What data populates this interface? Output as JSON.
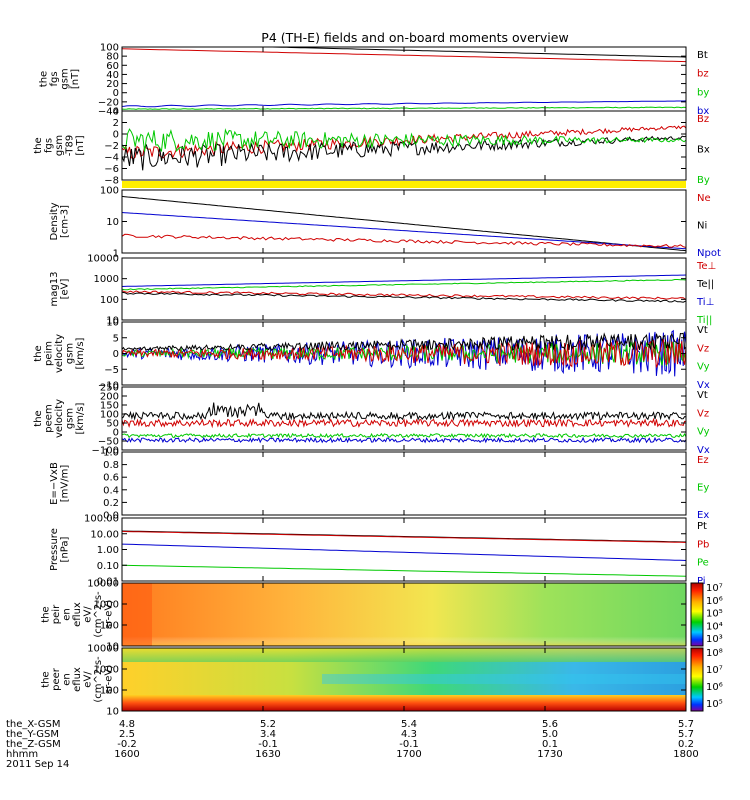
{
  "title": "P4 (TH-E) fields and on-board moments overview",
  "colors": {
    "black": "#000000",
    "red": "#d00000",
    "green": "#00c800",
    "blue": "#0000d0",
    "yellow": "#ffee00"
  },
  "x_ticks": [
    "1600",
    "1630",
    "1700",
    "1730",
    "1800"
  ],
  "footer": {
    "rows": [
      {
        "label": "the_X-GSM",
        "values": [
          "4.8",
          "5.2",
          "5.4",
          "5.6",
          "5.7"
        ]
      },
      {
        "label": "the_Y-GSM",
        "values": [
          "2.5",
          "3.4",
          "4.3",
          "5.0",
          "5.7"
        ]
      },
      {
        "label": "the_Z-GSM",
        "values": [
          "-0.2",
          "-0.1",
          "-0.1",
          "0.1",
          "0.2"
        ]
      },
      {
        "label": "hhmm",
        "values": [
          "1600",
          "1630",
          "1700",
          "1730",
          "1800"
        ]
      }
    ],
    "date": "2011 Sep 14"
  },
  "panels": [
    {
      "ylabel": [
        "the",
        "fgs",
        "gsm",
        "[nT]"
      ],
      "ylim": [
        -40,
        100
      ],
      "ticks": [
        "100",
        "80",
        "60",
        "40",
        "20",
        "0",
        "−20",
        "−40"
      ],
      "legend": [
        {
          "text": "Bt",
          "color": "black"
        },
        {
          "text": "bz",
          "color": "red"
        },
        {
          "text": "by",
          "color": "green"
        },
        {
          "text": "bx",
          "color": "blue"
        }
      ]
    },
    {
      "ylabel": [
        "the",
        "fgs",
        "gsm",
        "-T89",
        "[nT]"
      ],
      "ylim": [
        -9,
        4
      ],
      "ticks": [
        "4",
        "2",
        "0",
        "−2",
        "−4",
        "−6",
        "−8"
      ],
      "legend": [
        {
          "text": "Bz",
          "color": "red"
        },
        {
          "text": "Bx",
          "color": "black"
        },
        {
          "text": "By",
          "color": "green"
        }
      ]
    },
    {
      "ylabel": [
        "Density",
        "[cm-3]"
      ],
      "ylim": [
        1,
        150
      ],
      "log": true,
      "ticks": [
        "100",
        "10",
        "1"
      ],
      "legend": [
        {
          "text": "Ne",
          "color": "red"
        },
        {
          "text": "Ni",
          "color": "black"
        },
        {
          "text": "Npot",
          "color": "blue"
        }
      ]
    },
    {
      "ylabel": [
        "mag13",
        "[eV]"
      ],
      "ylim": [
        10,
        10000
      ],
      "log": true,
      "ticks": [
        "10000",
        "1000",
        "100",
        "10"
      ],
      "legend": [
        {
          "text": "Te⊥",
          "color": "red"
        },
        {
          "text": "Te||",
          "color": "black"
        },
        {
          "text": "Ti⊥",
          "color": "blue"
        },
        {
          "text": "Ti||",
          "color": "green"
        }
      ]
    },
    {
      "ylabel": [
        "the",
        "peim",
        "velocity",
        "gsm",
        "[km/s]"
      ],
      "ylim": [
        -10,
        10
      ],
      "ticks": [
        "10",
        "5",
        "0",
        "−5",
        "−10"
      ],
      "legend": [
        {
          "text": "Vt",
          "color": "black"
        },
        {
          "text": "Vz",
          "color": "red"
        },
        {
          "text": "Vy",
          "color": "green"
        },
        {
          "text": "Vx",
          "color": "blue"
        }
      ]
    },
    {
      "ylabel": [
        "the",
        "peem",
        "velocity",
        "gsm",
        "[km/s]"
      ],
      "ylim": [
        -100,
        250
      ],
      "ticks": [
        "250",
        "200",
        "150",
        "100",
        "50",
        "0",
        "−50",
        "−100"
      ],
      "legend": [
        {
          "text": "Vt",
          "color": "black"
        },
        {
          "text": "Vz",
          "color": "red"
        },
        {
          "text": "Vy",
          "color": "green"
        },
        {
          "text": "Vx",
          "color": "blue"
        }
      ]
    },
    {
      "ylabel": [
        "E=−VxB",
        "[mV/m]"
      ],
      "ylim": [
        0,
        1
      ],
      "ticks": [
        "1.0",
        "0.8",
        "0.6",
        "0.4",
        "0.2",
        "0.0"
      ],
      "legend": [
        {
          "text": "Ez",
          "color": "red"
        },
        {
          "text": "Ey",
          "color": "green"
        },
        {
          "text": "Ex",
          "color": "blue"
        }
      ]
    },
    {
      "ylabel": [
        "Pressure",
        "[nPa]"
      ],
      "ylim": [
        0.01,
        100
      ],
      "log": true,
      "ticks": [
        "100.00",
        "10.00",
        "1.00",
        "0.10",
        "0.01"
      ],
      "legend": [
        {
          "text": "Pt",
          "color": "black"
        },
        {
          "text": "Pb",
          "color": "red"
        },
        {
          "text": "Pe",
          "color": "green"
        },
        {
          "text": "Pi",
          "color": "blue"
        }
      ]
    },
    {
      "ylabel": [
        "the",
        "peir",
        "en",
        "eflux",
        "eV/",
        "(cm^2-s-",
        "sr-eV)"
      ],
      "ylim": [
        5,
        20000
      ],
      "log": true,
      "ticks": [
        "10000",
        "1000",
        "100",
        "10"
      ],
      "colorbar": [
        "10⁷",
        "10⁶",
        "10⁵",
        "10⁴",
        "10³"
      ]
    },
    {
      "ylabel": [
        "the",
        "peer",
        "en",
        "eflux",
        "eV/",
        "(cm^2-s-",
        "sr-eV)"
      ],
      "ylim": [
        5,
        20000
      ],
      "log": true,
      "ticks": [
        "10000",
        "1000",
        "100",
        "10"
      ],
      "colorbar": [
        "10⁸",
        "10⁷",
        "10⁶",
        "10⁵"
      ]
    }
  ]
}
